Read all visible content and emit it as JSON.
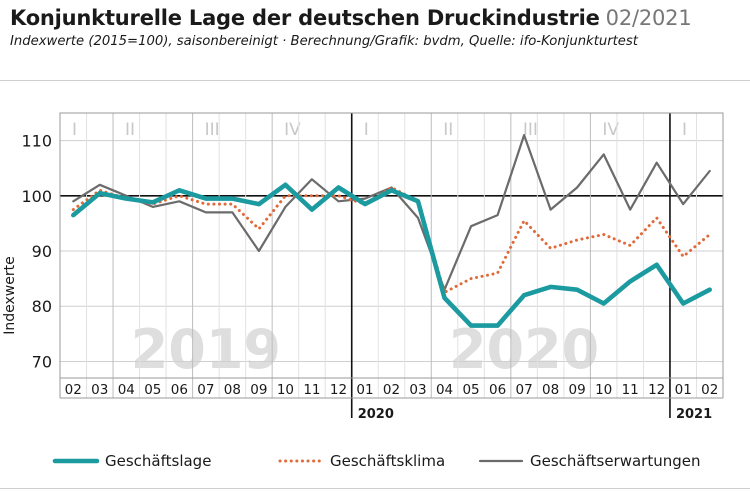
{
  "header": {
    "title": "Konjunkturelle Lage der deutschen Druckindustrie",
    "date": "02/2021",
    "subtitle": "Indexwerte (2015=100), saisonbereinigt · Berechnung/Grafik: bvdm, Quelle: ifo-Konjunkturtest"
  },
  "chart_data": {
    "type": "line",
    "ylabel": "Indexwerte",
    "ylim": [
      67,
      115
    ],
    "yticks": [
      70,
      80,
      90,
      100,
      110
    ],
    "x": [
      "02",
      "03",
      "04",
      "05",
      "06",
      "07",
      "08",
      "09",
      "10",
      "11",
      "12",
      "01",
      "02",
      "03",
      "04",
      "05",
      "06",
      "07",
      "08",
      "09",
      "10",
      "11",
      "12",
      "01",
      "02"
    ],
    "year_labels": [
      {
        "text": "2020",
        "start_index": 11
      },
      {
        "text": "2021",
        "start_index": 23
      }
    ],
    "background_years": [
      {
        "text": "2019",
        "center_index": 5
      },
      {
        "text": "2020",
        "center_index": 17
      }
    ],
    "quarters": [
      {
        "label": "I",
        "start": 0,
        "end": 1
      },
      {
        "label": "II",
        "start": 2,
        "end": 4
      },
      {
        "label": "III",
        "start": 5,
        "end": 7
      },
      {
        "label": "IV",
        "start": 8,
        "end": 10
      },
      {
        "label": "I",
        "start": 11,
        "end": 13
      },
      {
        "label": "II",
        "start": 14,
        "end": 16
      },
      {
        "label": "III",
        "start": 17,
        "end": 19
      },
      {
        "label": "IV",
        "start": 20,
        "end": 22
      },
      {
        "label": "I",
        "start": 23,
        "end": 24
      }
    ],
    "series": [
      {
        "name": "Geschäftserwartungen",
        "color": "#6b6b6b",
        "style": "solid-thin",
        "values": [
          99,
          102,
          100,
          98,
          99,
          97,
          97,
          90,
          98,
          103,
          99,
          99.5,
          101.5,
          96,
          83,
          94.5,
          96.5,
          111,
          97.5,
          101.5,
          107.5,
          97.5,
          106,
          98.5,
          104.5
        ]
      },
      {
        "name": "Geschäftsklima",
        "color": "#e06a3a",
        "style": "dotted",
        "values": [
          97.5,
          101,
          99.5,
          98.5,
          100,
          98.5,
          98.5,
          94,
          100,
          100,
          100,
          98.5,
          101.5,
          99,
          82.5,
          85,
          86,
          95.5,
          90.5,
          92,
          93,
          91,
          96,
          89,
          93
        ]
      },
      {
        "name": "Geschäftslage",
        "color": "#1b9aa0",
        "style": "solid-thick",
        "values": [
          96.5,
          100.5,
          99.5,
          98.8,
          101,
          99.5,
          99.5,
          98.5,
          102,
          97.5,
          101.5,
          98.5,
          101,
          99,
          81.5,
          76.5,
          76.5,
          82,
          83.5,
          83,
          80.5,
          84.5,
          87.5,
          80.5,
          83
        ]
      }
    ],
    "legend": [
      {
        "name": "Geschäftslage",
        "color": "#1b9aa0",
        "style": "solid-thick"
      },
      {
        "name": "Geschäftsklima",
        "color": "#e06a3a",
        "style": "dotted"
      },
      {
        "name": "Geschäftserwartungen",
        "color": "#6b6b6b",
        "style": "solid-thin"
      }
    ],
    "legend_position": "bottom",
    "grid": true
  }
}
